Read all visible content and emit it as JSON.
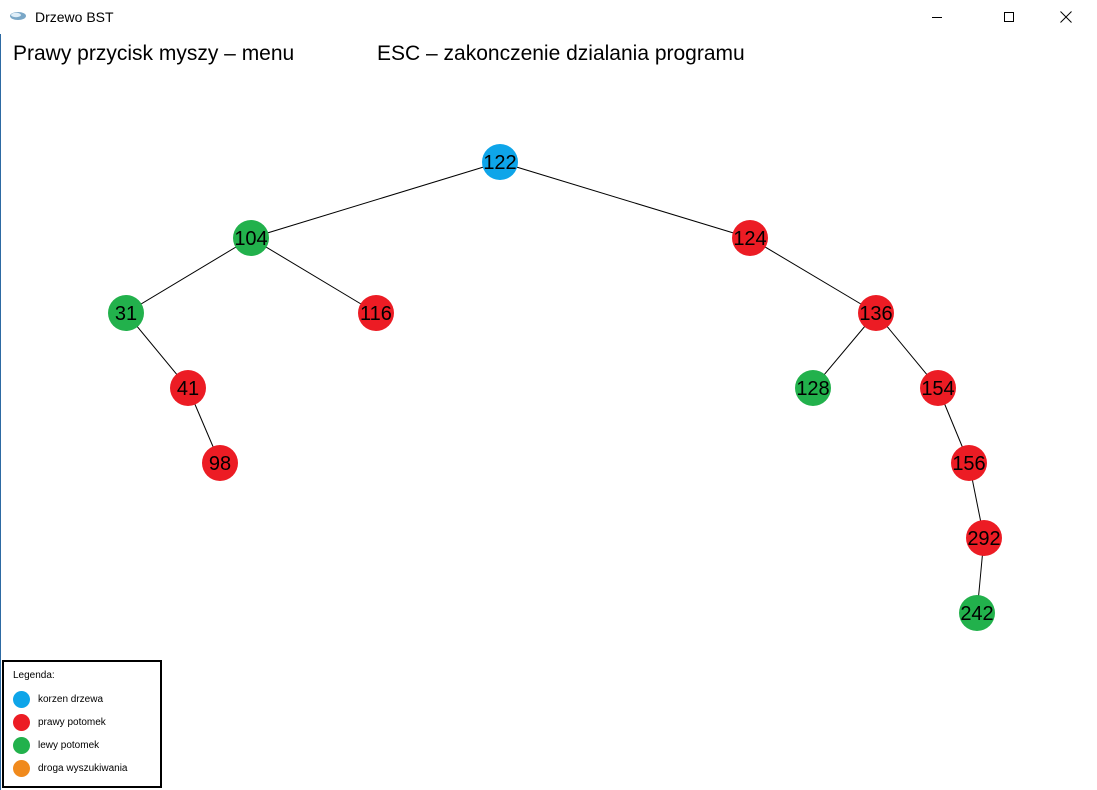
{
  "window": {
    "title": "Drzewo BST",
    "app_icon": "app-logo-icon",
    "controls": {
      "minimize_icon": "minimize-icon",
      "maximize_icon": "maximize-icon",
      "close_icon": "close-icon"
    }
  },
  "help": {
    "menu_hint": "Prawy przycisk myszy – menu",
    "exit_hint": "ESC – zakonczenie dzialania programu"
  },
  "colors": {
    "root": "#0ea5e9",
    "right_child": "#ec1c24",
    "left_child": "#22b14c",
    "search_path": "#f08a1d",
    "edge": "#000000"
  },
  "tree": {
    "nodes": [
      {
        "key": "122",
        "role": "root",
        "parent": null
      },
      {
        "key": "104",
        "role": "left_child",
        "parent": "122"
      },
      {
        "key": "124",
        "role": "right_child",
        "parent": "122"
      },
      {
        "key": "31",
        "role": "left_child",
        "parent": "104"
      },
      {
        "key": "116",
        "role": "right_child",
        "parent": "104"
      },
      {
        "key": "41",
        "role": "right_child",
        "parent": "31"
      },
      {
        "key": "98",
        "role": "right_child",
        "parent": "41"
      },
      {
        "key": "136",
        "role": "right_child",
        "parent": "124"
      },
      {
        "key": "128",
        "role": "left_child",
        "parent": "136"
      },
      {
        "key": "154",
        "role": "right_child",
        "parent": "136"
      },
      {
        "key": "156",
        "role": "right_child",
        "parent": "154"
      },
      {
        "key": "292",
        "role": "right_child",
        "parent": "156"
      },
      {
        "key": "242",
        "role": "left_child",
        "parent": "292"
      }
    ]
  },
  "legend": {
    "title": "Legenda:",
    "items": [
      {
        "label": "korzen drzewa",
        "color_key": "root"
      },
      {
        "label": "prawy potomek",
        "color_key": "right_child"
      },
      {
        "label": "lewy potomek",
        "color_key": "left_child"
      },
      {
        "label": "droga wyszukiwania",
        "color_key": "search_path"
      }
    ]
  }
}
